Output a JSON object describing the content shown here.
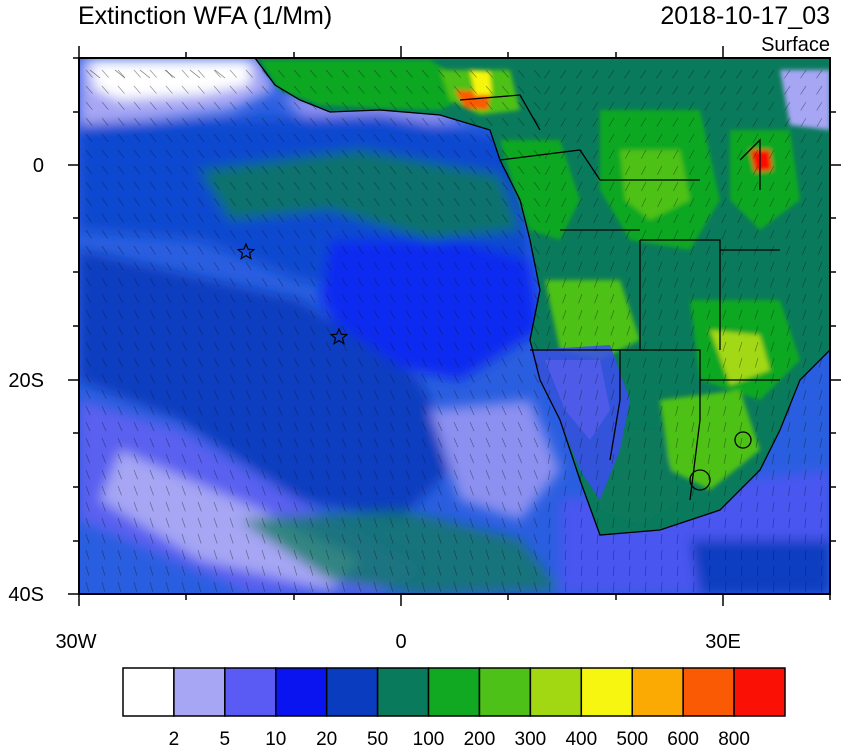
{
  "header": {
    "title": "Extinction WFA (1/Mm)",
    "timestamp": "2018-10-17_03",
    "level": "Surface"
  },
  "map": {
    "lat_ticks": [
      "0",
      "20S",
      "40S"
    ],
    "lon_ticks": [
      "30W",
      "0",
      "30E"
    ],
    "markers": [
      {
        "name": "star-marker",
        "lon": -14.5,
        "lat": -8
      },
      {
        "name": "star-marker",
        "lon": -5.5,
        "lat": -16
      }
    ]
  },
  "legend": {
    "labels": [
      "2",
      "5",
      "10",
      "20",
      "50",
      "100",
      "200",
      "300",
      "400",
      "500",
      "600",
      "800"
    ],
    "colors": [
      "#ffffff",
      "#a6a6f4",
      "#5a5af5",
      "#0a14f0",
      "#0a3cc0",
      "#0a7a5c",
      "#11a822",
      "#4dc118",
      "#a2d812",
      "#f6f610",
      "#fbaa04",
      "#fb5a04",
      "#fa1005"
    ]
  }
}
